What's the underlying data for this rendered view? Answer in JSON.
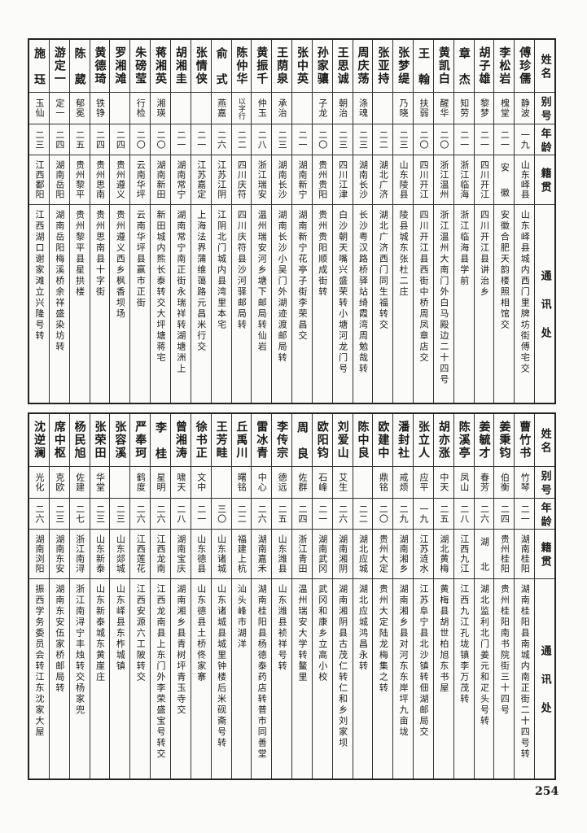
{
  "headers": {
    "name": "姓名",
    "alias": "别号",
    "age": "年龄",
    "origin": "籍贯",
    "address": "通讯处"
  },
  "top_table": [
    {
      "name": "傅珍儒",
      "alias": "静波",
      "age": "一九",
      "origin": "山东峄县",
      "address": "山东峄县城内西门里牌坊街傅宅交"
    },
    {
      "name": "李松岩",
      "alias": "槐堂",
      "age": "二一",
      "origin": "安徽",
      "address": "安徽合肥天韵楼照相馆交"
    },
    {
      "name": "胡子雄",
      "alias": "黎梦",
      "age": "二一",
      "origin": "四川开江",
      "address": "四川开江县讲治乡"
    },
    {
      "name": "章杰",
      "alias": "知劳",
      "age": "二一",
      "origin": "浙江临海",
      "address": "浙江临海县学前"
    },
    {
      "name": "黄凯白",
      "alias": "醒华",
      "age": "二〇",
      "origin": "浙江温州",
      "address": "浙江温州大南门外白马殿边二十四号"
    },
    {
      "name": "王翰",
      "alias": "扶弱",
      "age": "二〇",
      "origin": "四川开江",
      "address": "四川开江县西街中桥周凤章店交"
    },
    {
      "name": "张梦缇",
      "alias": "乃晓",
      "age": "二三",
      "origin": "山东陵县",
      "address": "陵县城东张杜二庄"
    },
    {
      "name": "张亚持",
      "alias": "",
      "age": "二二",
      "origin": "湖北广济",
      "address": "湖北广济西门同生福转交"
    },
    {
      "name": "周庆荡",
      "alias": "涤魂",
      "age": "二三",
      "origin": "湖南长沙",
      "address": "长沙粤汉路桥驿站绮霞湾周勉哉转"
    },
    {
      "name": "王思诚",
      "alias": "朝治",
      "age": "二三",
      "origin": "四川江津",
      "address": "白沙朝天嘴兴盛荣转小塘河龙门号"
    },
    {
      "name": "孙家骧",
      "alias": "子龙",
      "age": "二〇",
      "origin": "贵州贵阳",
      "address": "贵州贵阳顺成街转"
    },
    {
      "name": "张中英",
      "alias": "",
      "age": "二一",
      "origin": "湖南新宁",
      "address": "湖南新宁花亭子街李荣昌交"
    },
    {
      "name": "王荫泉",
      "alias": "承治",
      "age": "二三",
      "origin": "湖南长沙",
      "address": "湖南长沙小吴门外湖迹渡邮局转"
    },
    {
      "name": "黄振千",
      "alias": "仲玉",
      "age": "二八",
      "origin": "浙江瑞安",
      "address": "温州瑞安河乡塘下邮局转仙岩"
    },
    {
      "name": "陈仲华",
      "alias": "以字行",
      "age": "二二",
      "origin": "四川庆符",
      "address": "四川庆符县沙河驿邮局转"
    },
    {
      "name": "俞式",
      "alias": "燕嘉",
      "age": "二六",
      "origin": "江苏江阴",
      "address": "江阴北门城内县湾里本宅"
    },
    {
      "name": "张情侠",
      "alias": "",
      "age": "二一",
      "origin": "江苏嘉定",
      "address": "上海法界蒲维蔼路元昌米行交"
    },
    {
      "name": "胡湘圭",
      "alias": "",
      "age": "二一",
      "origin": "湖南常宁",
      "address": "湖南常宁南正街永瑞祥转湖塘洲上"
    },
    {
      "name": "蒋湘英",
      "alias": "湘瑛",
      "age": "二〇",
      "origin": "湖南新田",
      "address": "新田城内熊长泰转交大坪塘蒋宅"
    },
    {
      "name": "朱磅莹",
      "alias": "行检",
      "age": "二〇",
      "origin": "云南华坪",
      "address": "云南华坪县赢市正街"
    },
    {
      "name": "罗湘滩",
      "alias": "",
      "age": "二四",
      "origin": "贵州遵义",
      "address": "贵州遵义西乡枫香坝场"
    },
    {
      "name": "黄德琦",
      "alias": "铁铮",
      "age": "二四",
      "origin": "贵州思南",
      "address": "贵州思南县十字街"
    },
    {
      "name": "陈葳",
      "alias": "郁冕",
      "age": "二五",
      "origin": "贵州黎平",
      "address": "贵州黎平县星拱楼"
    },
    {
      "name": "游定一",
      "alias": "定一",
      "age": "二四",
      "origin": "湖南岳阳",
      "address": "湖南岳阳梅溪桥余祥盛染坊转"
    },
    {
      "name": "施珏",
      "alias": "玉仙",
      "age": "二三",
      "origin": "江西鄱阳",
      "address": "江西湖口谢家滩立兴隆号转"
    }
  ],
  "bottom_table": [
    {
      "name": "曹竹书",
      "alias": "竹琴",
      "age": "二一",
      "origin": "湖南桂阳",
      "address": "湖南桂阳县南城内南正街二十四号转"
    },
    {
      "name": "姜秉钧",
      "alias": "伯衡",
      "age": "二四",
      "origin": "贵州桂阳",
      "address": "贵州桂阳南书院街三十四号"
    },
    {
      "name": "姜毓才",
      "alias": "春芳",
      "age": "二六",
      "origin": "湖北",
      "address": "湖北监利北门姜元和疋头号转"
    },
    {
      "name": "陈溪亭",
      "alias": "凤山",
      "age": "二八",
      "origin": "江西九江",
      "address": "江西九江孔垅镇李万茂转"
    },
    {
      "name": "胡亦涨",
      "alias": "中天",
      "age": "二五",
      "origin": "湖北黄梅",
      "address": "黄梅县胡世柏旭东书屋"
    },
    {
      "name": "张立人",
      "alias": "应平",
      "age": "一九",
      "origin": "江苏涟水",
      "address": "江苏阜宁县北沙镇转佃湖邮局交"
    },
    {
      "name": "潘封社",
      "alias": "戒烦",
      "age": "二九",
      "origin": "湖南湘乡",
      "address": "湖南湘乡县对河东东岸坪九亩垅"
    },
    {
      "name": "欧建中",
      "alias": "鼎铭",
      "age": "二〇",
      "origin": "贵州大定",
      "address": "贵州大定陆龙梅集之转"
    },
    {
      "name": "陈中良",
      "alias": "",
      "age": "二二",
      "origin": "湖北应城",
      "address": "湖北应城鸿昌永转"
    },
    {
      "name": "刘爱山",
      "alias": "艾生",
      "age": "二六",
      "origin": "湖南湘阴",
      "address": "湖南湘阴县古茂仁转仁和乡刘家坝"
    },
    {
      "name": "欧阳钧",
      "alias": "石峰",
      "age": "二一",
      "origin": "湖南武冈",
      "address": "武冈和康乡立高小校"
    },
    {
      "name": "周良",
      "alias": "佐群",
      "age": "二四",
      "origin": "浙江青田",
      "address": "温州瑞安大学转鳌里"
    },
    {
      "name": "李传宗",
      "alias": "德远",
      "age": "二五",
      "origin": "山东潍县",
      "address": "山东潍县祯祥号转"
    },
    {
      "name": "雷冰青",
      "alias": "中心",
      "age": "二六",
      "origin": "湖南嘉禾",
      "address": "湖南桂阳县杨德泰药店转普市同善堂"
    },
    {
      "name": "丘禹川",
      "alias": "曙铭",
      "age": "二二",
      "origin": "福建上杭",
      "address": "汕头峰市湖洋"
    },
    {
      "name": "王芳畦",
      "alias": "",
      "age": "三〇",
      "origin": "山东诸城",
      "address": "山东诸城县城里钟楼后米砚斋号转"
    },
    {
      "name": "徐书正",
      "alias": "文中",
      "age": "二一",
      "origin": "山东德县",
      "address": "山东德县土桥佟家寨"
    },
    {
      "name": "曾湘涛",
      "alias": "啸天",
      "age": "二八",
      "origin": "湖南宝庆",
      "address": "湖南湘乡县青树坪青玉寺交"
    },
    {
      "name": "李桂",
      "alias": "星明",
      "age": "二六",
      "origin": "江西龙南",
      "address": "江西龙南县上东门外李荣盛宝号转交"
    },
    {
      "name": "严奉珂",
      "alias": "鹤度",
      "age": "二六",
      "origin": "江西莲花",
      "address": "江西安源六工陂转交"
    },
    {
      "name": "张容溪",
      "alias": "",
      "age": "二三",
      "origin": "山东郯城",
      "address": "山东峄县东柞城镇"
    },
    {
      "name": "张荣田",
      "alias": "华堂",
      "age": "二三",
      "origin": "山东新泰",
      "address": "山东新泰城东黄崖庄"
    },
    {
      "name": "杨民旭",
      "alias": "佐建",
      "age": "二七",
      "origin": "浙江南浔",
      "address": "浙江南浔宁丰烛转交杨家兜"
    },
    {
      "name": "席中枢",
      "alias": "克欧",
      "age": "二三",
      "origin": "湖南东安",
      "address": "湖南东安伍家桥邮局转"
    },
    {
      "name": "沈逆澜",
      "alias": "光化",
      "age": "二六",
      "origin": "湖南浏阳",
      "address": "振西学务委员会转江东沈家大屋"
    }
  ],
  "page_number": "254"
}
